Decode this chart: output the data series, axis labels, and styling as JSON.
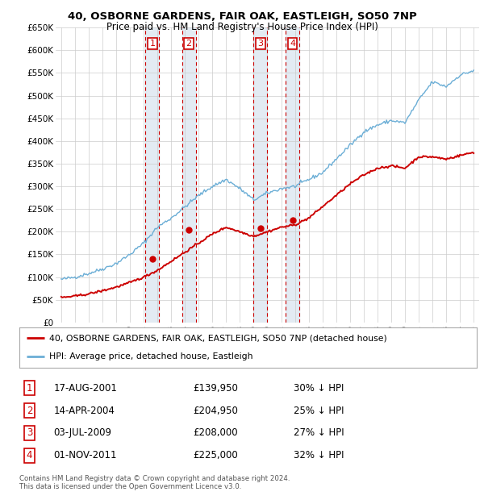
{
  "title1": "40, OSBORNE GARDENS, FAIR OAK, EASTLEIGH, SO50 7NP",
  "title2": "Price paid vs. HM Land Registry's House Price Index (HPI)",
  "ylim": [
    0,
    650000
  ],
  "yticks": [
    0,
    50000,
    100000,
    150000,
    200000,
    250000,
    300000,
    350000,
    400000,
    450000,
    500000,
    550000,
    600000,
    650000
  ],
  "ytick_labels": [
    "£0",
    "£50K",
    "£100K",
    "£150K",
    "£200K",
    "£250K",
    "£300K",
    "£350K",
    "£400K",
    "£450K",
    "£500K",
    "£550K",
    "£600K",
    "£650K"
  ],
  "xlim_start": 1994.6,
  "xlim_end": 2025.4,
  "transactions": [
    {
      "num": 1,
      "year": 2001.63,
      "price": 139950,
      "date": "17-AUG-2001",
      "pct": "30%"
    },
    {
      "num": 2,
      "year": 2004.29,
      "price": 204950,
      "date": "14-APR-2004",
      "pct": "25%"
    },
    {
      "num": 3,
      "year": 2009.5,
      "price": 208000,
      "date": "03-JUL-2009",
      "pct": "27%"
    },
    {
      "num": 4,
      "year": 2011.83,
      "price": 225000,
      "date": "01-NOV-2011",
      "pct": "32%"
    }
  ],
  "hpi_color": "#6baed6",
  "price_color": "#cc0000",
  "transaction_box_color": "#cc0000",
  "shade_color": "#dce6f1",
  "grid_color": "#cccccc",
  "bg_color": "#ffffff",
  "footer": "Contains HM Land Registry data © Crown copyright and database right 2024.\nThis data is licensed under the Open Government Licence v3.0.",
  "legend_line1": "40, OSBORNE GARDENS, FAIR OAK, EASTLEIGH, SO50 7NP (detached house)",
  "legend_line2": "HPI: Average price, detached house, Eastleigh",
  "hpi_anchors_x": [
    1995,
    1996,
    1997,
    1998,
    1999,
    2000,
    2001,
    2002,
    2003,
    2004,
    2005,
    2006,
    2007,
    2008,
    2009,
    2010,
    2011,
    2012,
    2013,
    2014,
    2015,
    2016,
    2017,
    2018,
    2019,
    2020,
    2021,
    2022,
    2023,
    2024,
    2025
  ],
  "hpi_anchors_y": [
    95000,
    100000,
    108000,
    118000,
    130000,
    150000,
    175000,
    210000,
    230000,
    255000,
    280000,
    300000,
    315000,
    295000,
    270000,
    285000,
    295000,
    300000,
    315000,
    330000,
    360000,
    390000,
    420000,
    435000,
    445000,
    440000,
    490000,
    530000,
    520000,
    545000,
    555000
  ],
  "price_anchors_x": [
    1995,
    1996,
    1997,
    1998,
    1999,
    2000,
    2001,
    2002,
    2003,
    2004,
    2005,
    2006,
    2007,
    2008,
    2009,
    2010,
    2011,
    2012,
    2013,
    2014,
    2015,
    2016,
    2017,
    2018,
    2019,
    2020,
    2021,
    2022,
    2023,
    2024,
    2025
  ],
  "price_anchors_y": [
    55000,
    58000,
    63000,
    70000,
    78000,
    88000,
    100000,
    115000,
    135000,
    155000,
    175000,
    195000,
    210000,
    200000,
    190000,
    200000,
    210000,
    215000,
    230000,
    255000,
    280000,
    305000,
    325000,
    340000,
    345000,
    340000,
    365000,
    365000,
    360000,
    368000,
    375000
  ]
}
